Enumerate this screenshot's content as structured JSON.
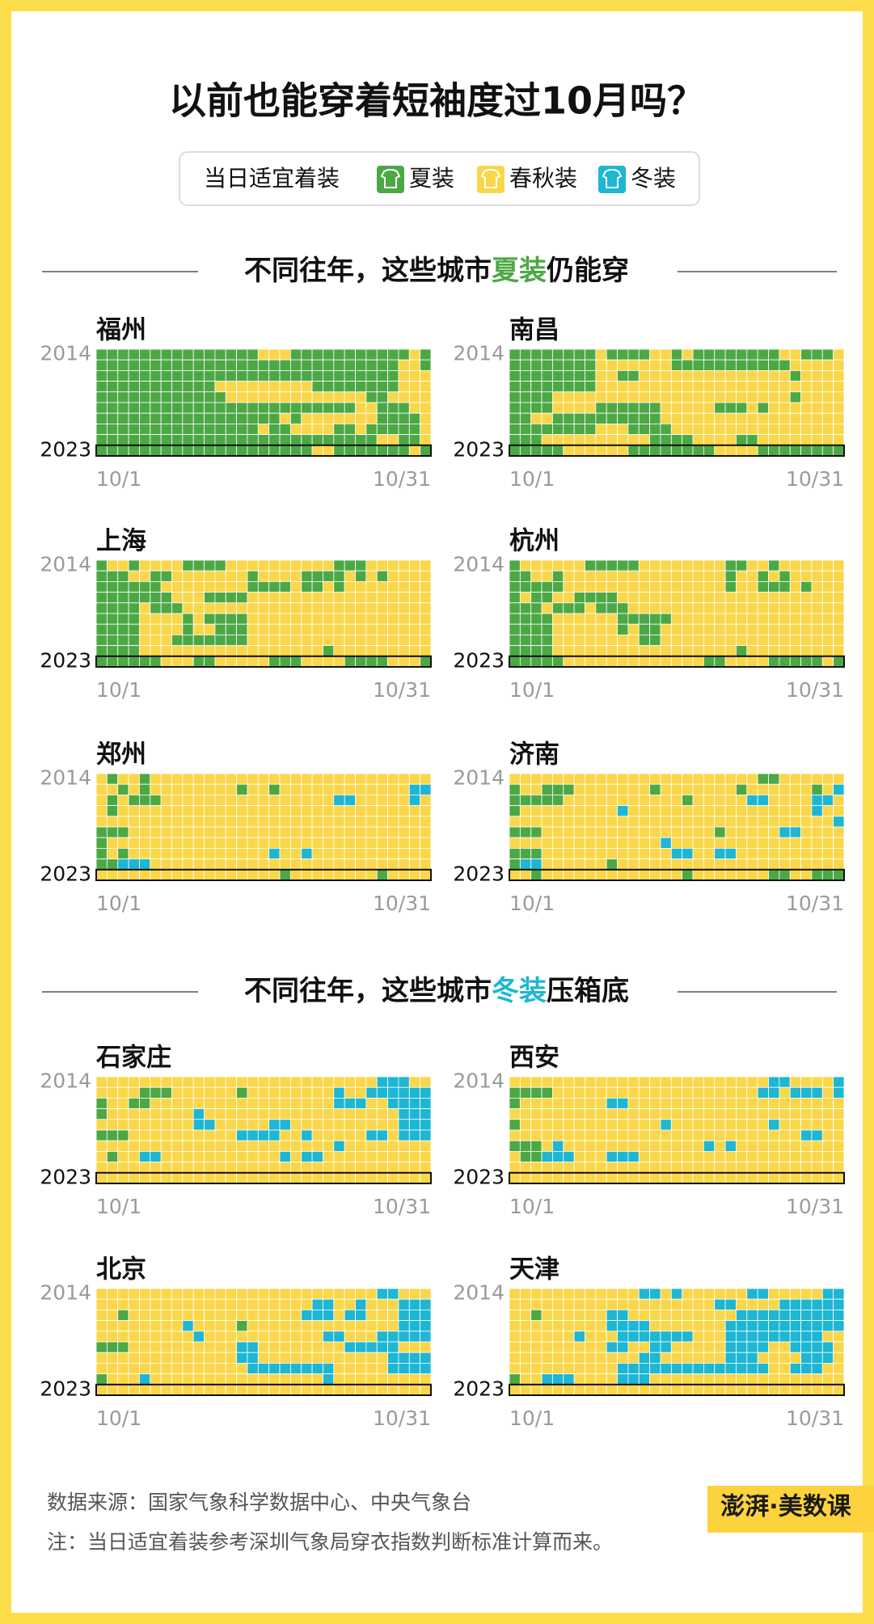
{
  "title": "以前也能穿着短袖度过10月吗？",
  "legend": {
    "label": "当日适宜着装",
    "items": [
      {
        "name": "夏装",
        "color": "#4ca845"
      },
      {
        "name": "春秋装",
        "color": "#fad74a"
      },
      {
        "name": "冬装",
        "color": "#1db6d3"
      }
    ]
  },
  "axis_labels": {
    "years": [
      "2014",
      "2023"
    ],
    "dates": [
      "10/1",
      "10/31"
    ]
  },
  "sections": [
    {
      "title_parts": [
        "不同往年，这些城市",
        "夏装",
        "仍能穿"
      ],
      "highlight_color": "#4ca845",
      "cities": [
        {
          "name": "福州",
          "rows": [
            "0000000000000001110000000000010",
            "0000000000000000000000000000110",
            "0000000000000000000000000000111",
            "0000000000011111111100000000111",
            "0000000000001111111111111001111",
            "0000000000000000000000001100011",
            "0000000000000000010111111100001",
            "0000000000000001001111001000001",
            "0000000000000000000000000011001",
            "0000000000000000000011000000010"
          ]
        },
        {
          "name": "南昌",
          "rows": [
            "0000000010000110100000000110001",
            "0000000011111110000000000011111",
            "0000000011001111111111111101111",
            "0000000011111111111111111111111",
            "0000111111111111111111111101111",
            "0000111100000011111000101111111",
            "0011000000000011111111111111111",
            "0000000011100001111111111111111",
            "0001111111111000011110011111111",
            "0000011111100000000111100000000"
          ]
        },
        {
          "name": "上海",
          "rows": [
            "0110111100001111111111000111111",
            "0001100111111101111000010101111",
            "0000001111111100001001011111111",
            "0000000111000011111111111111111",
            "0000100011111111111111111111111",
            "0000111101000011111111111111111",
            "0000111101100011111111111111111",
            "0000111000000011111111111111111",
            "0000111111111111111110111111111",
            "0000001110011111000111100001110"
          ]
        },
        {
          "name": "杭州",
          "rows": [
            "0111111000001111111100110111111",
            "0011011111111111111101101011111",
            "0000011111111111111101100010111",
            "0100110000111111111111111111111",
            "0001000100011111111111111111111",
            "0000111111000001111111111111111",
            "0000111111010011111111111111111",
            "0000111111110011111111111111111",
            "0000111111111111111110111111111",
            "0000011111111111110011110000010"
          ]
        },
        {
          "name": "郑州",
          "rows": [
            "1011011111111111111111111111111",
            "1101011111111011011111111111122",
            "1010001111111111111111221111121",
            "1011111111111111111111111111111",
            "1111111111111111111111111111111",
            "0001111111111111111111111111111",
            "0111111111111111111111111111111",
            "0101111111111111211211111111111",
            "0022211111111111111111111111111",
            "1111111111111111101111111101111"
          ]
        },
        {
          "name": "济南",
          "rows": [
            "1111111111111111111111100111111",
            "0110001111111011111110111111012",
            "0000011111111111011111221111221",
            "0111111111211111111111111111211",
            "1111111111111111111111111111112",
            "0001111111111111111011111221111",
            "1111111111111121111111111111111",
            "0001111111111112211221111111111",
            "0221111110111111111111111111111",
            "1101111111111111011111110011000"
          ]
        }
      ]
    },
    {
      "title_parts": [
        "不同往年，这些城市",
        "冬装",
        "压箱底"
      ],
      "highlight_color": "#1db6d3",
      "cities": [
        {
          "name": "石家庄",
          "rows": [
            "1111111111111111111111111122211",
            "1111000111111011111111211222222",
            "0110011111111111111111222112222",
            "0111111112111111111111111111222",
            "1111111112211111221111111111222",
            "0001111111111222211211111221222",
            "1111111111111111111111211111111",
            "1011221111111111121221111111111",
            "1111111111111111111111111111111",
            "1111111111111111111111111111111"
          ]
        },
        {
          "name": "西安",
          "rows": [
            "1111111111111111111111112211112",
            "0000111111111111111111122122212",
            "0111111112211111111111111111111",
            "1111111111111111111111111111111",
            "0111111111111121111111112111111",
            "1111111111111111111111111112211",
            "0001211111111111112121111111111",
            "1002221112221111111111111111111",
            "1111111111111111111111111111111",
            "1111111111111111111111111111111"
          ]
        },
        {
          "name": "北京",
          "rows": [
            "1111111111111111111111111122111",
            "1111111111111111111122112111222",
            "1101111111111111111222122111222",
            "1111111121111011111111111111222",
            "1111111112111111111112211122222",
            "0001111111111221111111122222111",
            "1111111111111221111111111112222",
            "1111111111111122222222111112222",
            "0111211111111111111112111111111",
            "1111111111111111111111111111111"
          ]
        },
        {
          "name": "天津",
          "rows": [
            "1111111111112212111111221111122",
            "1111111111111111111221111222222",
            "1101111112211111111112222222222",
            "1111111112222111111122222222222",
            "1111112111222222211122222222211",
            "1111111112211221111122221122221",
            "1111111111112211111122211112221",
            "1111111111222222222222221122211",
            "0112221111222111111111111111111",
            "1111111111111111111111111111111"
          ]
        }
      ]
    }
  ],
  "footer": {
    "source": "数据来源：国家气象科学数据中心、中央气象台",
    "note": "注：当日适宜着装参考深圳气象局穿衣指数判断标准计算而来。"
  },
  "logo": "澎湃·美数课"
}
